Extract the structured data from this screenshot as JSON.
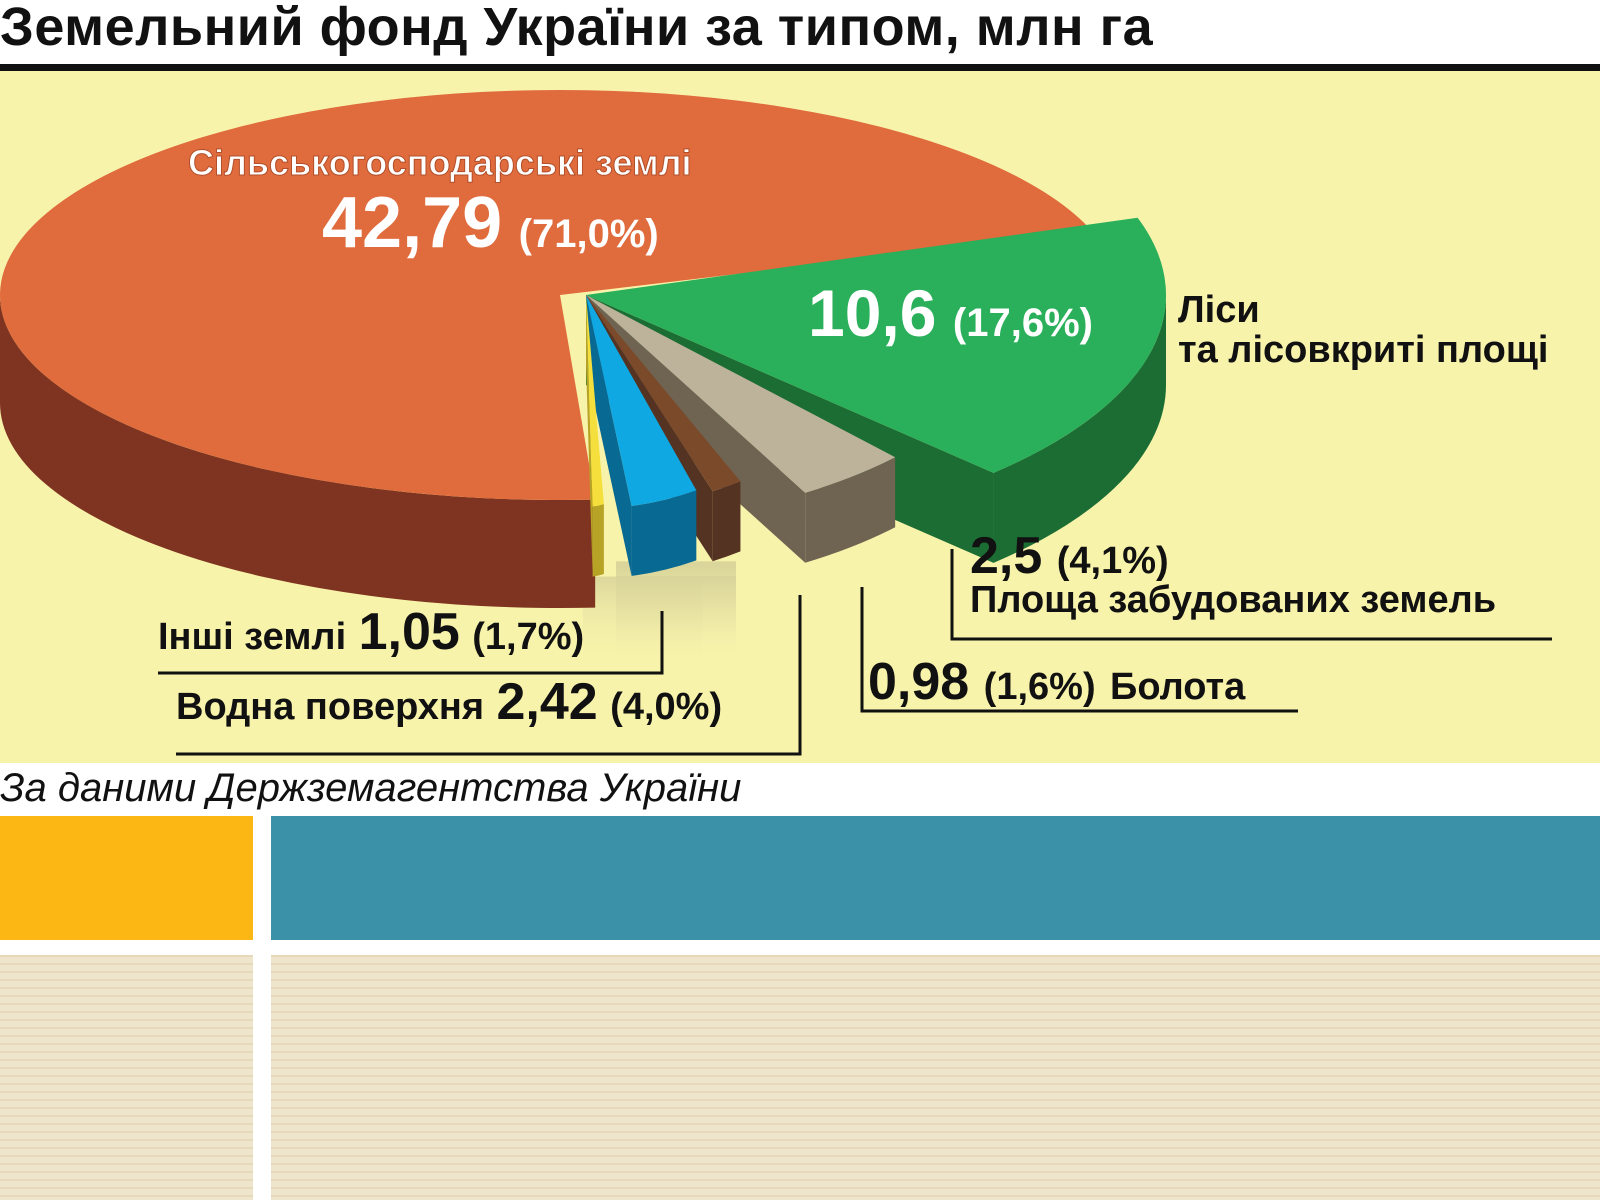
{
  "chart_data": {
    "type": "pie",
    "title": "Земельний фонд України за типом, млн га",
    "source": "За даними Держземагентства України",
    "unit": "млн га",
    "slices": [
      {
        "label": "Сільськогосподарські землі",
        "value_text": "42,79",
        "percent_text": "(71,0%)",
        "value": 42.79,
        "percent": 71.0,
        "color": "#e06b3c",
        "side_color": "#7e3420"
      },
      {
        "label": "Ліси",
        "label2": "та лісовкриті площі",
        "value_text": "10,6",
        "percent_text": "(17,6%)",
        "value": 10.6,
        "percent": 17.6,
        "color": "#2aaf5a",
        "side_color": "#1b6d34"
      },
      {
        "label": "Площа забудованих земель",
        "value_text": "2,5",
        "percent_text": "(4,1%)",
        "value": 2.5,
        "percent": 4.1,
        "color": "#bdb39a",
        "side_color": "#6f6452"
      },
      {
        "label": "Болота",
        "value_text": "0,98",
        "percent_text": "(1,6%)",
        "value": 0.98,
        "percent": 1.6,
        "color": "#7a4a2a",
        "side_color": "#553322"
      },
      {
        "label": "Водна поверхня",
        "value_text": "2,42",
        "percent_text": "(4,0%)",
        "value": 2.42,
        "percent": 4.0,
        "color": "#10a8e2",
        "side_color": "#086a93"
      },
      {
        "label": "Інші землі",
        "value_text": "1,05",
        "percent_text": "(1,7%)",
        "value": 1.05,
        "percent": 1.7,
        "color": "#f5df3c",
        "side_color": "#b7a326"
      }
    ],
    "background_color": "#f8f3ab"
  },
  "colors": {
    "block_orange": "#fcb714",
    "block_teal": "#3b92a8",
    "block_striped": "#ede2c6"
  }
}
